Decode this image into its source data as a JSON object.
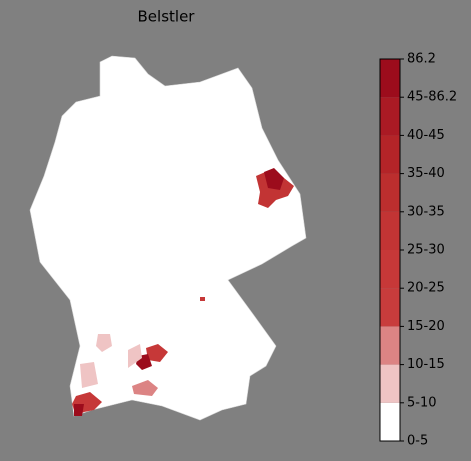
{
  "title": "Belstler",
  "colorbar": {
    "labels": [
      "0-5",
      "5-10",
      "10-15",
      "15-20",
      "20-25",
      "25-30",
      "30-35",
      "35-40",
      "40-45",
      "45-86.2",
      "86.2"
    ],
    "colors": [
      "#ffffff",
      "#efc4c4",
      "#dc8484",
      "#c83c3c",
      "#c63838",
      "#c23434",
      "#bc2e2e",
      "#b42428",
      "#aa1a24",
      "#9c0c1c"
    ]
  }
}
